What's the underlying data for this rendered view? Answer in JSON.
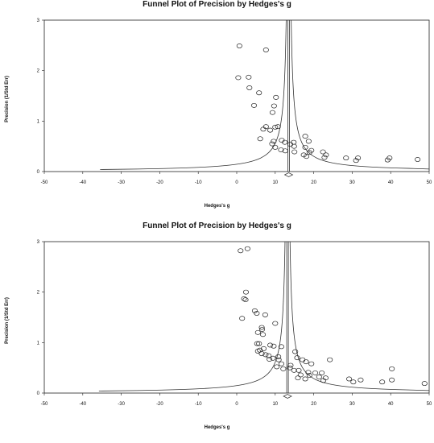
{
  "chart_data": [
    {
      "type": "scatter",
      "title": "Funnel Plot of Precision by Hedges's g",
      "xlabel": "Hedges's g",
      "ylabel": "Precision (1/Std Err)",
      "xlim": [
        -50,
        50
      ],
      "ylim": [
        0,
        3
      ],
      "xticks": [
        "-50",
        "-40",
        "-30",
        "-20",
        "-10",
        "0",
        "10",
        "20",
        "30",
        "40",
        "50"
      ],
      "yticks": [
        "0",
        "1",
        "2",
        "3"
      ],
      "grid": false,
      "center_estimate": 13.5,
      "points": [
        [
          0.7,
          2.49
        ],
        [
          7.6,
          2.41
        ],
        [
          0.4,
          1.86
        ],
        [
          3.1,
          1.87
        ],
        [
          3.3,
          1.66
        ],
        [
          5.8,
          1.56
        ],
        [
          10.2,
          1.47
        ],
        [
          4.5,
          1.31
        ],
        [
          9.7,
          1.3
        ],
        [
          9.3,
          1.17
        ],
        [
          10.7,
          0.89
        ],
        [
          7.6,
          0.89
        ],
        [
          6.9,
          0.84
        ],
        [
          8.7,
          0.82
        ],
        [
          10.0,
          0.88
        ],
        [
          17.8,
          0.7
        ],
        [
          6.1,
          0.65
        ],
        [
          11.7,
          0.62
        ],
        [
          9.6,
          0.6
        ],
        [
          12.5,
          0.58
        ],
        [
          14.8,
          0.58
        ],
        [
          9.2,
          0.55
        ],
        [
          18.7,
          0.6
        ],
        [
          13.9,
          0.54
        ],
        [
          10.0,
          0.48
        ],
        [
          14.9,
          0.5
        ],
        [
          11.5,
          0.43
        ],
        [
          17.8,
          0.48
        ],
        [
          19.4,
          0.42
        ],
        [
          12.6,
          0.41
        ],
        [
          15.0,
          0.39
        ],
        [
          18.9,
          0.38
        ],
        [
          17.4,
          0.33
        ],
        [
          22.4,
          0.39
        ],
        [
          23.2,
          0.33
        ],
        [
          18.1,
          0.3
        ],
        [
          22.8,
          0.28
        ],
        [
          28.4,
          0.27
        ],
        [
          31.5,
          0.27
        ],
        [
          31.0,
          0.22
        ],
        [
          39.7,
          0.27
        ],
        [
          39.2,
          0.23
        ],
        [
          47.0,
          0.24
        ]
      ]
    },
    {
      "type": "scatter",
      "title": "Funnel Plot of Precision by Hedges's g",
      "xlabel": "Hedges's g",
      "ylabel": "Precision (1/Std Err)",
      "xlim": [
        -50,
        50
      ],
      "ylim": [
        0,
        3
      ],
      "xticks": [
        "-50",
        "-40",
        "-30",
        "-20",
        "-10",
        "0",
        "10",
        "20",
        "30",
        "40",
        "50"
      ],
      "yticks": [
        "0",
        "1",
        "2",
        "3"
      ],
      "grid": false,
      "center_estimate": 13.2,
      "points": [
        [
          1.0,
          2.82
        ],
        [
          2.8,
          2.86
        ],
        [
          2.4,
          2.0
        ],
        [
          1.9,
          1.87
        ],
        [
          2.3,
          1.85
        ],
        [
          4.7,
          1.63
        ],
        [
          5.2,
          1.58
        ],
        [
          7.4,
          1.55
        ],
        [
          1.4,
          1.48
        ],
        [
          10.0,
          1.38
        ],
        [
          6.5,
          1.3
        ],
        [
          6.6,
          1.26
        ],
        [
          5.5,
          1.2
        ],
        [
          6.8,
          1.16
        ],
        [
          5.8,
          0.98
        ],
        [
          5.3,
          0.98
        ],
        [
          8.7,
          0.95
        ],
        [
          9.6,
          0.93
        ],
        [
          11.6,
          0.92
        ],
        [
          7.0,
          0.88
        ],
        [
          6.0,
          0.85
        ],
        [
          5.5,
          0.83
        ],
        [
          6.5,
          0.78
        ],
        [
          7.5,
          0.76
        ],
        [
          8.3,
          0.74
        ],
        [
          10.8,
          0.72
        ],
        [
          9.4,
          0.69
        ],
        [
          8.5,
          0.67
        ],
        [
          10.9,
          0.66
        ],
        [
          15.2,
          0.82
        ],
        [
          15.7,
          0.7
        ],
        [
          17.1,
          0.66
        ],
        [
          18.0,
          0.62
        ],
        [
          19.4,
          0.58
        ],
        [
          24.2,
          0.66
        ],
        [
          11.6,
          0.58
        ],
        [
          14.0,
          0.55
        ],
        [
          13.8,
          0.5
        ],
        [
          10.4,
          0.52
        ],
        [
          12.1,
          0.48
        ],
        [
          14.9,
          0.45
        ],
        [
          16.1,
          0.45
        ],
        [
          18.6,
          0.41
        ],
        [
          20.4,
          0.4
        ],
        [
          22.1,
          0.4
        ],
        [
          16.6,
          0.36
        ],
        [
          18.9,
          0.35
        ],
        [
          21.4,
          0.32
        ],
        [
          23.1,
          0.3
        ],
        [
          15.9,
          0.3
        ],
        [
          17.8,
          0.28
        ],
        [
          22.5,
          0.25
        ],
        [
          29.2,
          0.28
        ],
        [
          30.3,
          0.22
        ],
        [
          32.2,
          0.26
        ],
        [
          37.8,
          0.22
        ],
        [
          40.3,
          0.48
        ],
        [
          40.3,
          0.26
        ],
        [
          48.8,
          0.19
        ]
      ]
    }
  ]
}
